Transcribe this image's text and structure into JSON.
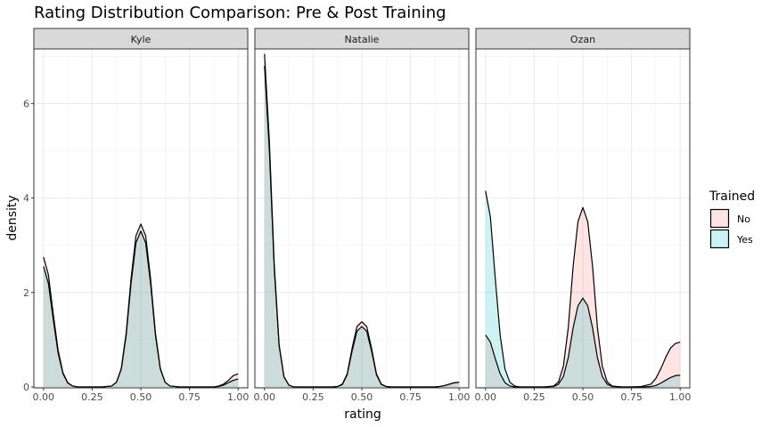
{
  "chart_data": {
    "type": "area",
    "title": "Rating Distribution Comparison: Pre & Post Training",
    "xlabel": "rating",
    "ylabel": "density",
    "xlim": [
      0,
      1
    ],
    "ylim": [
      0,
      7.1
    ],
    "xticks": [
      "0.00",
      "0.25",
      "0.50",
      "0.75",
      "1.00"
    ],
    "yticks": [
      "0",
      "2",
      "4",
      "6"
    ],
    "grid": true,
    "legend": {
      "title": "Trained",
      "position": "right",
      "entries": [
        {
          "label": "No",
          "color": "#F8766D"
        },
        {
          "label": "Yes",
          "color": "#00BFC4"
        }
      ]
    },
    "x": [
      0.0,
      0.025,
      0.05,
      0.075,
      0.1,
      0.125,
      0.15,
      0.175,
      0.2,
      0.25,
      0.3,
      0.35,
      0.375,
      0.4,
      0.425,
      0.45,
      0.475,
      0.5,
      0.525,
      0.55,
      0.575,
      0.6,
      0.625,
      0.65,
      0.7,
      0.75,
      0.8,
      0.85,
      0.875,
      0.9,
      0.925,
      0.95,
      0.975,
      1.0
    ],
    "panels": [
      {
        "name": "Kyle",
        "series": [
          {
            "name": "No",
            "values": [
              2.75,
              2.38,
              1.55,
              0.78,
              0.3,
              0.09,
              0.02,
              0,
              0,
              0,
              0,
              0.02,
              0.1,
              0.4,
              1.15,
              2.3,
              3.2,
              3.45,
              3.2,
              2.3,
              1.15,
              0.4,
              0.1,
              0.02,
              0,
              0,
              0,
              0,
              0,
              0.02,
              0.06,
              0.14,
              0.24,
              0.28
            ]
          },
          {
            "name": "Yes",
            "values": [
              2.55,
              2.2,
              1.43,
              0.72,
              0.28,
              0.08,
              0.02,
              0,
              0,
              0,
              0,
              0.02,
              0.1,
              0.38,
              1.1,
              2.2,
              3.05,
              3.3,
              3.05,
              2.2,
              1.1,
              0.38,
              0.1,
              0.02,
              0,
              0,
              0,
              0,
              0,
              0.01,
              0.04,
              0.09,
              0.14,
              0.17
            ]
          }
        ]
      },
      {
        "name": "Natalie",
        "series": [
          {
            "name": "No",
            "values": [
              7.05,
              5.2,
              2.6,
              0.9,
              0.22,
              0.04,
              0,
              0,
              0,
              0,
              0,
              0,
              0.01,
              0.06,
              0.28,
              0.82,
              1.28,
              1.38,
              1.28,
              0.82,
              0.28,
              0.06,
              0.01,
              0,
              0,
              0,
              0,
              0,
              0,
              0.01,
              0.03,
              0.06,
              0.09,
              0.1
            ]
          },
          {
            "name": "Yes",
            "values": [
              6.8,
              5.0,
              2.5,
              0.87,
              0.21,
              0.04,
              0,
              0,
              0,
              0,
              0,
              0,
              0.01,
              0.05,
              0.26,
              0.76,
              1.18,
              1.28,
              1.18,
              0.76,
              0.26,
              0.05,
              0.01,
              0,
              0,
              0,
              0,
              0,
              0,
              0.01,
              0.03,
              0.06,
              0.09,
              0.1
            ]
          }
        ]
      },
      {
        "name": "Ozan",
        "series": [
          {
            "name": "No",
            "values": [
              1.1,
              0.95,
              0.6,
              0.28,
              0.09,
              0.02,
              0,
              0,
              0,
              0,
              0,
              0.02,
              0.11,
              0.44,
              1.25,
              2.55,
              3.5,
              3.8,
              3.5,
              2.55,
              1.25,
              0.44,
              0.11,
              0.02,
              0,
              0,
              0.01,
              0.06,
              0.18,
              0.38,
              0.62,
              0.82,
              0.92,
              0.95
            ]
          },
          {
            "name": "Yes",
            "values": [
              4.15,
              3.6,
              2.3,
              1.1,
              0.38,
              0.1,
              0.02,
              0,
              0,
              0,
              0,
              0.01,
              0.06,
              0.22,
              0.62,
              1.25,
              1.72,
              1.88,
              1.72,
              1.25,
              0.62,
              0.22,
              0.06,
              0.01,
              0,
              0,
              0,
              0.01,
              0.03,
              0.08,
              0.14,
              0.2,
              0.24,
              0.25
            ]
          }
        ]
      }
    ]
  }
}
